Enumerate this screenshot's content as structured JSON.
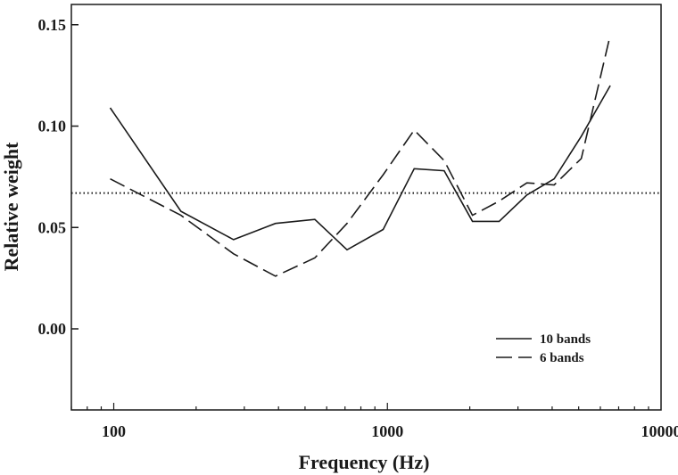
{
  "chart_data": {
    "type": "line",
    "xlabel": "Frequency (Hz)",
    "ylabel": "Relative weight",
    "xscale": "log",
    "xlim": [
      70,
      10000
    ],
    "ylim": [
      -0.04,
      0.16
    ],
    "xticks": [
      100,
      1000,
      10000
    ],
    "xtick_labels": [
      "100",
      "1000",
      "10000"
    ],
    "yticks": [
      0.0,
      0.05,
      0.1,
      0.15
    ],
    "ytick_labels": [
      "0.00",
      "0.05",
      "0.10",
      "0.15"
    ],
    "grid": false,
    "legend_position": "bottom-right",
    "reference_line": {
      "y": 0.067,
      "style": "dotted"
    },
    "series": [
      {
        "name": "10 bands",
        "style": "solid",
        "color": "#1a1a1a",
        "points": [
          [
            97,
            0.109
          ],
          [
            176,
            0.058
          ],
          [
            274,
            0.044
          ],
          [
            390,
            0.052
          ],
          [
            543,
            0.054
          ],
          [
            712,
            0.039
          ],
          [
            965,
            0.049
          ],
          [
            1253,
            0.079
          ],
          [
            1612,
            0.078
          ],
          [
            2045,
            0.053
          ],
          [
            2561,
            0.053
          ],
          [
            3233,
            0.066
          ],
          [
            4069,
            0.074
          ],
          [
            5112,
            0.095
          ],
          [
            6525,
            0.12
          ]
        ]
      },
      {
        "name": "6 bands",
        "style": "dashed",
        "color": "#1a1a1a",
        "points": [
          [
            97,
            0.074
          ],
          [
            176,
            0.056
          ],
          [
            274,
            0.037
          ],
          [
            390,
            0.026
          ],
          [
            543,
            0.035
          ],
          [
            712,
            0.052
          ],
          [
            965,
            0.076
          ],
          [
            1253,
            0.098
          ],
          [
            1612,
            0.083
          ],
          [
            2045,
            0.056
          ],
          [
            2561,
            0.063
          ],
          [
            3233,
            0.072
          ],
          [
            4069,
            0.071
          ],
          [
            5112,
            0.084
          ],
          [
            6525,
            0.145
          ]
        ]
      }
    ]
  }
}
